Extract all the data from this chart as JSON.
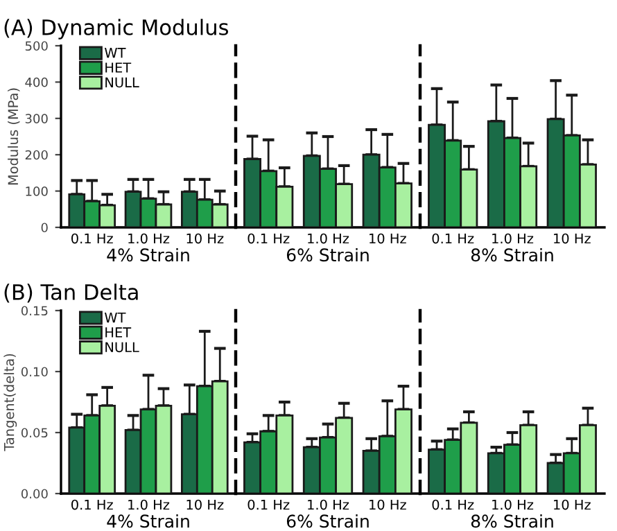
{
  "chart_data": [
    {
      "type": "bar",
      "title": "(A) Dynamic Modulus",
      "ylabel": "Modulus (MPa)",
      "xlabel": "4% Strain",
      "categories": [
        "0.1 Hz",
        "1.0 Hz",
        "10 Hz"
      ],
      "ylim": [
        0,
        500
      ],
      "yticks": [
        0,
        100,
        200,
        300,
        400,
        500
      ],
      "legend": "top left",
      "grid": false,
      "series": [
        {
          "name": "WT",
          "color": "#1a6b47",
          "values": [
            91,
            98,
            98
          ],
          "errors": [
            [
              91,
              129
            ],
            [
              98,
              132
            ],
            [
              98,
              132
            ]
          ]
        },
        {
          "name": "HET",
          "color": "#1f9e4a",
          "values": [
            72,
            79,
            76
          ],
          "errors": [
            [
              72,
              129
            ],
            [
              79,
              132
            ],
            [
              76,
              132
            ]
          ]
        },
        {
          "name": "NULL",
          "color": "#a8f0a0",
          "values": [
            61,
            63,
            63
          ],
          "errors": [
            [
              61,
              91
            ],
            [
              63,
              98
            ],
            [
              63,
              100
            ]
          ]
        }
      ]
    },
    {
      "type": "bar",
      "xlabel": "6% Strain",
      "categories": [
        "0.1 Hz",
        "1.0 Hz",
        "10 Hz"
      ],
      "ylim": [
        0,
        500
      ],
      "tick_labels": "x",
      "grid": false,
      "series": [
        {
          "color": "#1a6b47",
          "values": [
            188,
            197,
            200
          ],
          "errors": [
            [
              188,
              251
            ],
            [
              197,
              260
            ],
            [
              200,
              269
            ]
          ]
        },
        {
          "color": "#1f9e4a",
          "values": [
            155,
            161,
            165
          ],
          "errors": [
            [
              155,
              241
            ],
            [
              161,
              250
            ],
            [
              165,
              256
            ]
          ]
        },
        {
          "color": "#a8f0a0",
          "values": [
            112,
            119,
            121
          ],
          "errors": [
            [
              112,
              164
            ],
            [
              119,
              170
            ],
            [
              121,
              176
            ]
          ]
        }
      ]
    },
    {
      "type": "bar",
      "xlabel": "8% Strain",
      "categories": [
        "0.1 Hz",
        "1.0 Hz",
        "10 Hz"
      ],
      "ylim": [
        0,
        500
      ],
      "tick_labels": "x",
      "grid": false,
      "series": [
        {
          "color": "#1a6b47",
          "values": [
            282,
            292,
            298
          ],
          "errors": [
            [
              282,
              382
            ],
            [
              292,
              392
            ],
            [
              298,
              404
            ]
          ]
        },
        {
          "color": "#1f9e4a",
          "values": [
            239,
            246,
            253
          ],
          "errors": [
            [
              239,
              345
            ],
            [
              246,
              355
            ],
            [
              253,
              364
            ]
          ]
        },
        {
          "color": "#a8f0a0",
          "values": [
            159,
            168,
            173
          ],
          "errors": [
            [
              159,
              223
            ],
            [
              168,
              232
            ],
            [
              173,
              241
            ]
          ]
        }
      ]
    },
    {
      "type": "bar",
      "title": "(B) Tan Delta",
      "ylabel": "Tangent(delta)",
      "xlabel": "4% Strain",
      "categories": [
        "0.1 Hz",
        "1.0 Hz",
        "10 Hz"
      ],
      "ylim": [
        0,
        0.15
      ],
      "yticks": [
        {
          "value": 0,
          "label": "0.00"
        },
        {
          "value": 0.05,
          "label": "0.05"
        },
        {
          "value": 0.1,
          "label": "0.10"
        },
        {
          "value": 0.15,
          "label": "0.15"
        }
      ],
      "legend": "top left",
      "grid": false,
      "series": [
        {
          "name": "WT",
          "color": "#1a6b47",
          "values": [
            0.054,
            0.052,
            0.065
          ],
          "errors": [
            [
              0.054,
              0.065
            ],
            [
              0.052,
              0.064
            ],
            [
              0.065,
              0.089
            ]
          ]
        },
        {
          "name": "HET",
          "color": "#1f9e4a",
          "values": [
            0.064,
            0.069,
            0.088
          ],
          "errors": [
            [
              0.064,
              0.081
            ],
            [
              0.069,
              0.097
            ],
            [
              0.088,
              0.133
            ]
          ]
        },
        {
          "name": "NULL",
          "color": "#a8f0a0",
          "values": [
            0.072,
            0.072,
            0.092
          ],
          "errors": [
            [
              0.072,
              0.087
            ],
            [
              0.072,
              0.086
            ],
            [
              0.092,
              0.119
            ]
          ]
        }
      ]
    },
    {
      "type": "bar",
      "xlabel": "6% Strain",
      "categories": [
        "0.1 Hz",
        "1.0 Hz",
        "10 Hz"
      ],
      "ylim": [
        0,
        0.15
      ],
      "tick_labels": "x",
      "grid": false,
      "series": [
        {
          "color": "#1a6b47",
          "values": [
            0.042,
            0.038,
            0.035
          ],
          "errors": [
            [
              0.042,
              0.049
            ],
            [
              0.038,
              0.045
            ],
            [
              0.035,
              0.045
            ]
          ]
        },
        {
          "color": "#1f9e4a",
          "values": [
            0.051,
            0.046,
            0.047
          ],
          "errors": [
            [
              0.051,
              0.064
            ],
            [
              0.046,
              0.057
            ],
            [
              0.047,
              0.076
            ]
          ]
        },
        {
          "color": "#a8f0a0",
          "values": [
            0.064,
            0.062,
            0.069
          ],
          "errors": [
            [
              0.064,
              0.075
            ],
            [
              0.062,
              0.074
            ],
            [
              0.069,
              0.088
            ]
          ]
        }
      ]
    },
    {
      "type": "bar",
      "xlabel": "8% Strain",
      "categories": [
        "0.1 Hz",
        "1.0 Hz",
        "10 Hz"
      ],
      "ylim": [
        0,
        0.15
      ],
      "tick_labels": "x",
      "grid": false,
      "series": [
        {
          "color": "#1a6b47",
          "values": [
            0.036,
            0.033,
            0.025
          ],
          "errors": [
            [
              0.036,
              0.043
            ],
            [
              0.033,
              0.038
            ],
            [
              0.025,
              0.032
            ]
          ]
        },
        {
          "color": "#1f9e4a",
          "values": [
            0.044,
            0.04,
            0.033
          ],
          "errors": [
            [
              0.044,
              0.053
            ],
            [
              0.04,
              0.05
            ],
            [
              0.033,
              0.045
            ]
          ]
        },
        {
          "color": "#a8f0a0",
          "values": [
            0.058,
            0.056,
            0.056
          ],
          "errors": [
            [
              0.058,
              0.067
            ],
            [
              0.056,
              0.067
            ],
            [
              0.056,
              0.07
            ]
          ]
        }
      ]
    }
  ]
}
